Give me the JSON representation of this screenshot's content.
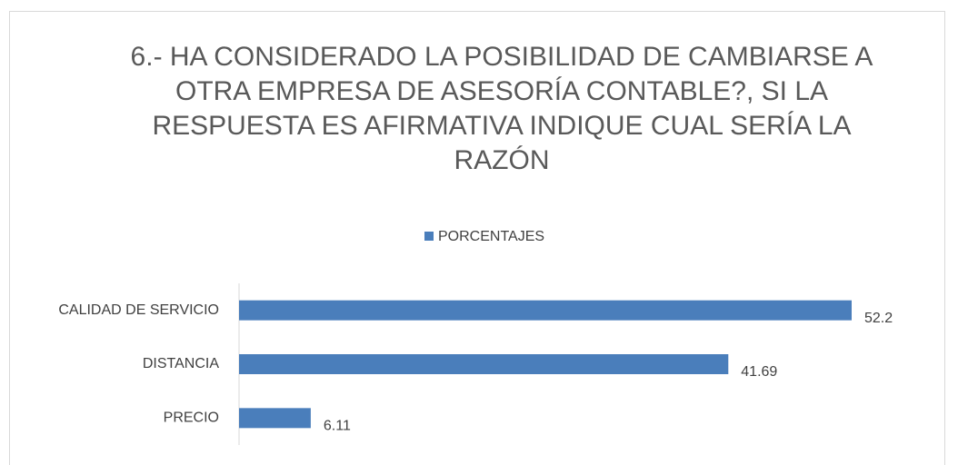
{
  "chart_data": {
    "type": "bar",
    "orientation": "horizontal",
    "title": "6.- HA CONSIDERADO LA POSIBILIDAD DE CAMBIARSE A OTRA EMPRESA DE ASESORÍA CONTABLE?, SI LA RESPUESTA ES AFIRMATIVA INDIQUE CUAL SERÍA LA RAZÓN",
    "categories": [
      "CALIDAD DE SERVICIO",
      "DISTANCIA",
      "PRECIO"
    ],
    "series": [
      {
        "name": "PORCENTAJES",
        "color": "#4a7ebb",
        "values": [
          52.2,
          41.69,
          6.11
        ]
      }
    ],
    "legend": "top",
    "grid": false
  }
}
